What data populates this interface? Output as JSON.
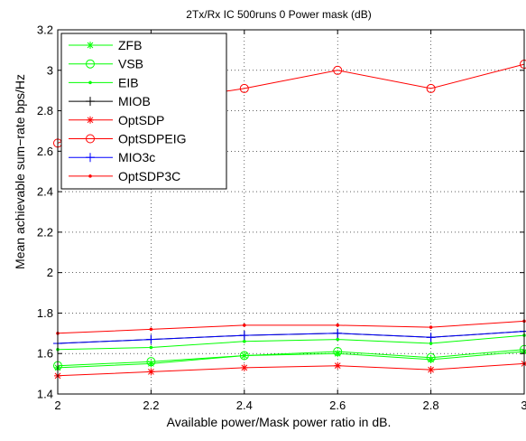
{
  "chart_data": {
    "type": "line",
    "title": "2Tx/Rx IC  500runs   0   Power mask (dB)",
    "xlabel": "Available power/Mask power ratio in dB.",
    "ylabel": "Mean achievable sum−rate bps/Hz",
    "xlim": [
      2,
      3
    ],
    "ylim": [
      1.4,
      3.2
    ],
    "x_ticks": [
      "2",
      "2.2",
      "2.4",
      "2.6",
      "2.8",
      "3"
    ],
    "y_ticks": [
      "1.4",
      "1.6",
      "1.8",
      "2",
      "2.2",
      "2.4",
      "2.6",
      "2.8",
      "3",
      "3.2"
    ],
    "grid": true,
    "legend_position": "top-left",
    "x": [
      2.0,
      2.2,
      2.4,
      2.6,
      2.8,
      3.0
    ],
    "series": [
      {
        "name": "ZFB",
        "color": "#00ff00",
        "marker": "asterisk",
        "values": [
          1.53,
          1.55,
          1.59,
          1.6,
          1.57,
          1.61
        ]
      },
      {
        "name": "VSB",
        "color": "#00ff00",
        "marker": "circle",
        "values": [
          1.54,
          1.56,
          1.59,
          1.61,
          1.58,
          1.62
        ]
      },
      {
        "name": "EIB",
        "color": "#00ff00",
        "marker": "dot",
        "values": [
          1.62,
          1.63,
          1.66,
          1.67,
          1.65,
          1.69
        ]
      },
      {
        "name": "MIOB",
        "color": "#000000",
        "marker": "plus",
        "values": [
          1.65,
          1.67,
          1.69,
          1.7,
          1.68,
          1.71
        ]
      },
      {
        "name": "OptSDP",
        "color": "#ff0000",
        "marker": "asterisk",
        "values": [
          1.49,
          1.51,
          1.53,
          1.54,
          1.52,
          1.55
        ]
      },
      {
        "name": "OptSDPEIG",
        "color": "#ff0000",
        "marker": "circle",
        "values": [
          2.64,
          2.84,
          2.91,
          3.0,
          2.91,
          3.03
        ]
      },
      {
        "name": "MIO3c",
        "color": "#0000ff",
        "marker": "plus",
        "values": [
          1.65,
          1.67,
          1.69,
          1.7,
          1.68,
          1.71
        ]
      },
      {
        "name": "OptSDP3C",
        "color": "#ff0000",
        "marker": "dot",
        "values": [
          1.7,
          1.72,
          1.74,
          1.74,
          1.73,
          1.76
        ]
      }
    ]
  }
}
